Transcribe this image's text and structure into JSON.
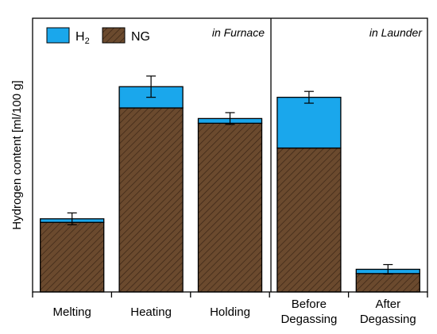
{
  "chart_data": {
    "type": "bar",
    "stacked": true,
    "ylabel": "Hydrogen content [ml/100 g]",
    "categories": [
      [
        "Melting"
      ],
      [
        "Heating"
      ],
      [
        "Holding"
      ],
      [
        "Before",
        "Degassing"
      ],
      [
        "After",
        "Degassing"
      ]
    ],
    "series": [
      {
        "name": "NG",
        "values": [
          29.5,
          78.0,
          71.5,
          61.0,
          7.8
        ],
        "color": "#6b4a2e",
        "pattern": "hatched"
      },
      {
        "name": "H2",
        "values": [
          1.5,
          9.0,
          2.0,
          21.5,
          1.8
        ],
        "color": "#1aa7ec"
      }
    ],
    "error": [
      2.5,
      4.5,
      2.5,
      2.5,
      2.0
    ],
    "ylim": [
      0,
      116
    ],
    "regions": [
      {
        "label": "in Furnace",
        "categories": [
          0,
          1,
          2
        ]
      },
      {
        "label": "in Launder",
        "categories": [
          3,
          4
        ]
      }
    ],
    "legend": {
      "placement": "top-left",
      "entries": [
        {
          "series": "H2",
          "label_main": "H",
          "label_sub": "2"
        },
        {
          "series": "NG",
          "label_main": "NG",
          "label_sub": ""
        }
      ]
    }
  }
}
